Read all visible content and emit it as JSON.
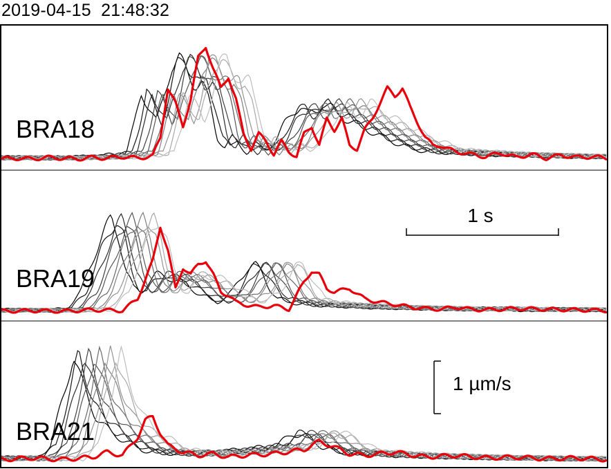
{
  "timestamp": "2019-04-15  21:48:32",
  "colors": {
    "highlight_trace": "#e8000b",
    "trace_gray_range": [
      "#000000",
      "#bdbdbd"
    ],
    "frame": "#000000"
  },
  "scale_bars": {
    "time": "1 s",
    "amplitude": "1 µm/s"
  },
  "chart_data": {
    "type": "line",
    "title": "",
    "xlabel": "",
    "ylabel": "",
    "grid": false,
    "legend": "none",
    "x_unit": "s",
    "x_range": [
      0,
      4.0
    ],
    "notes_visible": [
      "station names printed inside each panel",
      "time scale bar of 1 s",
      "amplitude scale bar of 1 µm/s"
    ],
    "panels": [
      {
        "station": "BRA18",
        "ylim": [
          0,
          1.6
        ],
        "series": [
          {
            "role": "highlighted",
            "color": "#e8000b",
            "x": [
              0.0,
              0.1,
              0.2,
              0.3,
              0.4,
              0.5,
              0.6,
              0.7,
              0.8,
              0.9,
              1.0,
              1.05,
              1.1,
              1.15,
              1.2,
              1.25,
              1.3,
              1.35,
              1.4,
              1.45,
              1.5,
              1.55,
              1.6,
              1.65,
              1.7,
              1.75,
              1.8,
              1.85,
              1.9,
              1.95,
              2.0,
              2.05,
              2.1,
              2.15,
              2.2,
              2.25,
              2.3,
              2.35,
              2.4,
              2.45,
              2.5,
              2.55,
              2.6,
              2.65,
              2.7,
              2.75,
              2.8,
              2.85,
              2.9,
              2.95,
              3.0,
              3.1,
              3.2,
              3.3,
              3.4,
              3.5,
              3.6,
              3.7,
              3.8,
              3.9,
              4.0
            ],
            "y": [
              0.02,
              0.03,
              0.02,
              0.04,
              0.03,
              0.02,
              0.04,
              0.03,
              0.05,
              0.03,
              0.06,
              0.3,
              0.95,
              0.75,
              0.45,
              0.8,
              1.35,
              1.5,
              1.2,
              0.95,
              1.1,
              0.8,
              0.35,
              0.15,
              0.35,
              0.25,
              0.08,
              0.25,
              0.12,
              0.05,
              0.35,
              0.45,
              0.2,
              0.55,
              0.4,
              0.55,
              0.2,
              0.15,
              0.4,
              0.55,
              0.75,
              0.95,
              0.85,
              0.95,
              0.7,
              0.5,
              0.3,
              0.2,
              0.2,
              0.15,
              0.12,
              0.08,
              0.05,
              0.1,
              0.04,
              0.08,
              0.03,
              0.07,
              0.04,
              0.05,
              0.03
            ]
          },
          {
            "role": "background",
            "count": 10,
            "color": "gray",
            "x": [
              0.0,
              0.2,
              0.4,
              0.6,
              0.8,
              1.0,
              1.05,
              1.1,
              1.15,
              1.2,
              1.25,
              1.3,
              1.35,
              1.4,
              1.45,
              1.5,
              1.55,
              1.6,
              1.65,
              1.7,
              1.75,
              1.8,
              1.85,
              1.9,
              1.95,
              2.0,
              2.05,
              2.1,
              2.15,
              2.2,
              2.25,
              2.3,
              2.35,
              2.4,
              2.5,
              2.6,
              2.7,
              2.8,
              2.9,
              3.0,
              3.2,
              3.4,
              3.6,
              3.8,
              4.0
            ],
            "y": [
              0.03,
              0.04,
              0.03,
              0.04,
              0.05,
              0.1,
              0.45,
              0.9,
              0.7,
              0.5,
              0.85,
              1.25,
              1.35,
              1.15,
              1.0,
              1.05,
              0.75,
              0.3,
              0.18,
              0.3,
              0.2,
              0.1,
              0.22,
              0.15,
              0.18,
              0.3,
              0.5,
              0.65,
              0.7,
              0.6,
              0.65,
              0.75,
              0.7,
              0.6,
              0.5,
              0.4,
              0.3,
              0.22,
              0.15,
              0.12,
              0.1,
              0.08,
              0.07,
              0.06,
              0.05
            ]
          }
        ]
      },
      {
        "station": "BRA19",
        "ylim": [
          0,
          1.6
        ],
        "series": [
          {
            "role": "highlighted",
            "color": "#e8000b",
            "x": [
              0.0,
              0.2,
              0.4,
              0.6,
              0.8,
              0.9,
              1.0,
              1.05,
              1.1,
              1.15,
              1.2,
              1.25,
              1.3,
              1.35,
              1.4,
              1.45,
              1.5,
              1.55,
              1.6,
              1.7,
              1.8,
              1.9,
              2.0,
              2.05,
              2.1,
              2.15,
              2.2,
              2.3,
              2.4,
              2.5,
              2.6,
              2.7,
              2.8,
              2.9,
              3.0,
              3.1,
              3.2,
              3.4,
              3.6,
              3.8,
              4.0
            ],
            "y": [
              0.02,
              0.03,
              0.02,
              0.04,
              0.03,
              0.2,
              0.75,
              1.25,
              0.9,
              0.35,
              0.65,
              0.55,
              0.7,
              0.75,
              0.55,
              0.3,
              0.25,
              0.15,
              0.12,
              0.08,
              0.1,
              0.05,
              0.45,
              0.6,
              0.55,
              0.35,
              0.3,
              0.35,
              0.2,
              0.15,
              0.12,
              0.08,
              0.06,
              0.05,
              0.08,
              0.05,
              0.04,
              0.06,
              0.05,
              0.04,
              0.03
            ]
          },
          {
            "role": "background",
            "count": 10,
            "color": "gray",
            "x": [
              0.0,
              0.2,
              0.4,
              0.6,
              0.7,
              0.8,
              0.85,
              0.9,
              0.95,
              1.0,
              1.05,
              1.1,
              1.15,
              1.2,
              1.3,
              1.4,
              1.5,
              1.6,
              1.7,
              1.8,
              1.85,
              1.9,
              1.95,
              2.0,
              2.1,
              2.2,
              2.4,
              2.6,
              2.8,
              3.0,
              3.2,
              3.4,
              3.6,
              3.8,
              4.0
            ],
            "y": [
              0.03,
              0.04,
              0.03,
              0.05,
              0.3,
              0.9,
              1.15,
              1.35,
              1.1,
              0.6,
              0.35,
              0.3,
              0.45,
              0.55,
              0.5,
              0.4,
              0.25,
              0.15,
              0.3,
              0.65,
              0.7,
              0.55,
              0.35,
              0.2,
              0.15,
              0.12,
              0.1,
              0.08,
              0.07,
              0.06,
              0.05,
              0.06,
              0.04,
              0.05,
              0.04
            ]
          }
        ]
      },
      {
        "station": "BRA21",
        "ylim": [
          0,
          1.6
        ],
        "series": [
          {
            "role": "highlighted",
            "color": "#e8000b",
            "x": [
              0.0,
              0.2,
              0.4,
              0.6,
              0.7,
              0.8,
              0.9,
              0.95,
              1.0,
              1.05,
              1.1,
              1.2,
              1.3,
              1.4,
              1.5,
              1.6,
              1.8,
              2.0,
              2.1,
              2.2,
              2.3,
              2.4,
              2.6,
              2.8,
              3.0,
              3.2,
              3.4,
              3.6,
              3.8,
              4.0
            ],
            "y": [
              0.03,
              0.05,
              0.03,
              0.06,
              0.12,
              0.08,
              0.3,
              0.5,
              0.55,
              0.35,
              0.2,
              0.12,
              0.08,
              0.1,
              0.06,
              0.08,
              0.1,
              0.15,
              0.25,
              0.18,
              0.1,
              0.08,
              0.12,
              0.06,
              0.08,
              0.05,
              0.06,
              0.04,
              0.05,
              0.03
            ]
          },
          {
            "role": "background",
            "count": 10,
            "color": "gray",
            "x": [
              0.0,
              0.2,
              0.4,
              0.5,
              0.6,
              0.65,
              0.7,
              0.75,
              0.8,
              0.85,
              0.9,
              1.0,
              1.1,
              1.2,
              1.4,
              1.6,
              1.8,
              2.0,
              2.1,
              2.2,
              2.3,
              2.4,
              2.6,
              2.8,
              3.0,
              3.2,
              3.4,
              3.6,
              3.8,
              4.0
            ],
            "y": [
              0.04,
              0.05,
              0.04,
              0.2,
              0.9,
              1.3,
              1.0,
              0.75,
              0.55,
              0.45,
              0.35,
              0.25,
              0.15,
              0.12,
              0.1,
              0.12,
              0.15,
              0.2,
              0.35,
              0.3,
              0.18,
              0.12,
              0.1,
              0.08,
              0.07,
              0.06,
              0.05,
              0.05,
              0.04,
              0.04
            ]
          }
        ]
      }
    ]
  }
}
